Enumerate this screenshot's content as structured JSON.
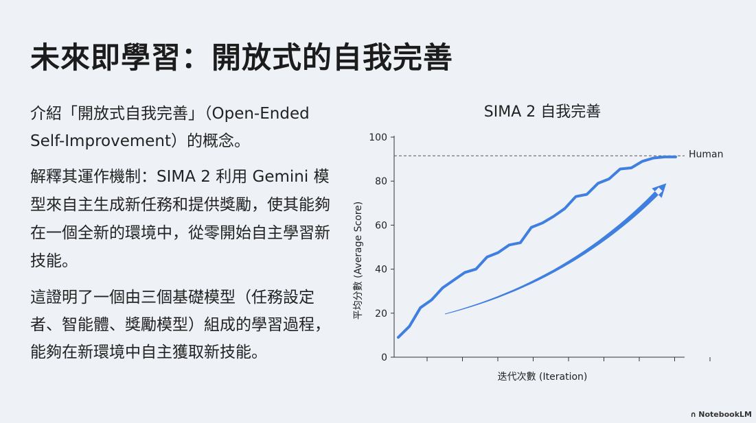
{
  "slide": {
    "title": "未來即學習：開放式的自我完善",
    "paragraphs": [
      "介紹「開放式自我完善」（Open-Ended Self-Improvement）的概念。",
      "解釋其運作機制：SIMA 2 利用 Gemini 模型來自主生成新任務和提供獎勵，使其能夠在一個全新的環境中，從零開始自主學習新技能。",
      "這證明了一個由三個基礎模型（任務設定者、智能體、獎勵模型）組成的學習過程，能夠在新環境中自主獲取新技能。"
    ]
  },
  "chart_data": {
    "type": "line",
    "title": "SIMA 2 自我完善",
    "xlabel": "迭代次數 (Iteration)",
    "ylabel": "平均分數 (Average Score)",
    "ylim": [
      0,
      100
    ],
    "yticks": [
      0,
      20,
      40,
      60,
      80,
      100
    ],
    "reference_line": {
      "label": "Human",
      "value": 91.5
    },
    "series": [
      {
        "x": [
          0,
          1,
          2,
          3,
          4,
          5,
          6,
          7,
          8,
          9,
          10,
          11,
          12,
          13,
          14,
          15,
          16,
          17,
          18,
          19,
          20,
          21,
          22,
          23,
          24,
          25
        ],
        "values": [
          9,
          14,
          22.5,
          26,
          31.5,
          35,
          38.5,
          40,
          45.5,
          47.5,
          51,
          52,
          59,
          61,
          64,
          67.5,
          73,
          74,
          79,
          81,
          85.5,
          86,
          89,
          90.5,
          91,
          91
        ]
      }
    ],
    "color": "#3f7fe0",
    "colors": {
      "line": "#3f7fe0",
      "trend_arrow": "#3f7fe0",
      "human_line": "#555555"
    },
    "grid": false,
    "legend": "none"
  },
  "footer": {
    "brand": "NotebookLM",
    "icon": "notebooklm-logo-icon"
  }
}
